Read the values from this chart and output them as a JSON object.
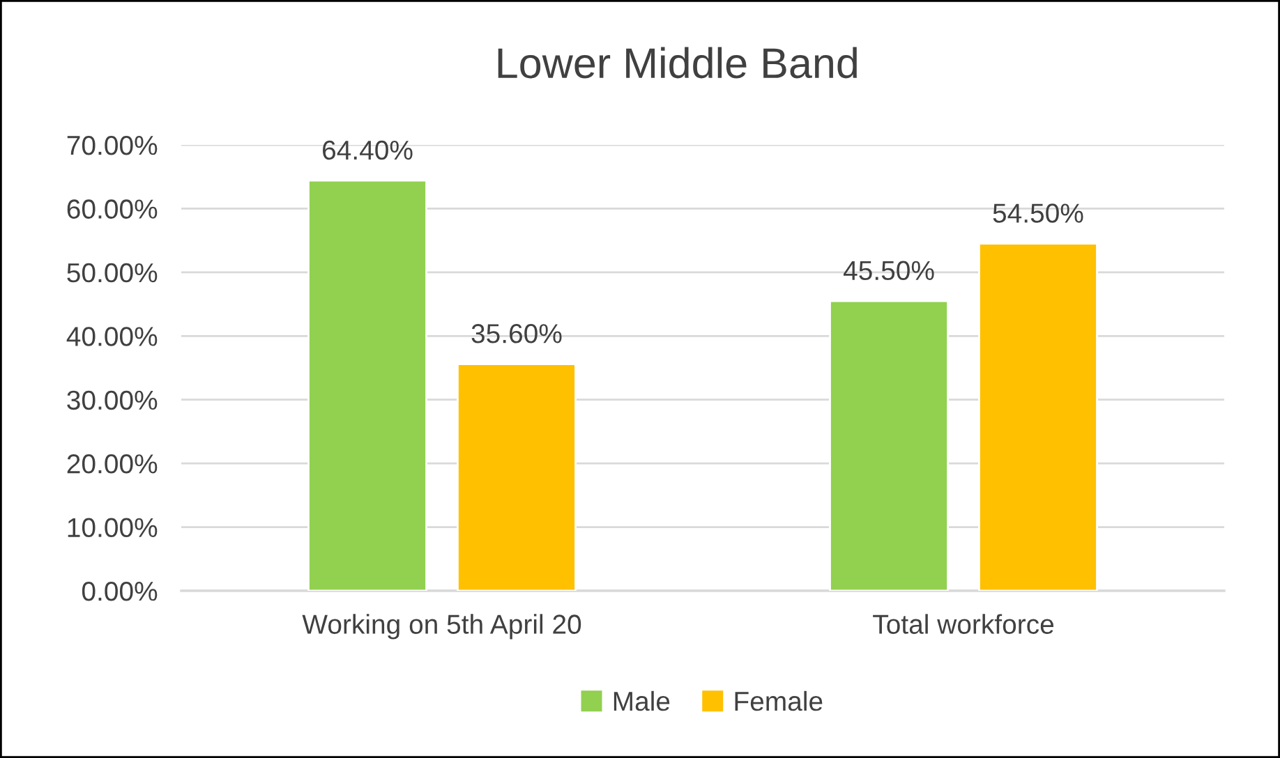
{
  "chart_data": {
    "type": "bar",
    "title": "Lower Middle Band",
    "categories": [
      "Working on 5th April 20",
      "Total workforce"
    ],
    "series": [
      {
        "name": "Male",
        "color": "#92d050",
        "values": [
          64.4,
          45.5
        ],
        "value_labels": [
          "64.40%",
          "45.50%"
        ]
      },
      {
        "name": "Female",
        "color": "#ffc000",
        "values": [
          35.6,
          54.5
        ],
        "value_labels": [
          "35.60%",
          "54.50%"
        ]
      }
    ],
    "ylim": [
      0,
      70
    ],
    "yticks": [
      {
        "value": 0,
        "label": "0.00%"
      },
      {
        "value": 10,
        "label": "10.00%"
      },
      {
        "value": 20,
        "label": "20.00%"
      },
      {
        "value": 30,
        "label": "30.00%"
      },
      {
        "value": 40,
        "label": "40.00%"
      },
      {
        "value": 50,
        "label": "50.00%"
      },
      {
        "value": 60,
        "label": "60.00%"
      },
      {
        "value": 70,
        "label": "70.00%"
      }
    ],
    "grid": "y",
    "legend": "bottom"
  }
}
